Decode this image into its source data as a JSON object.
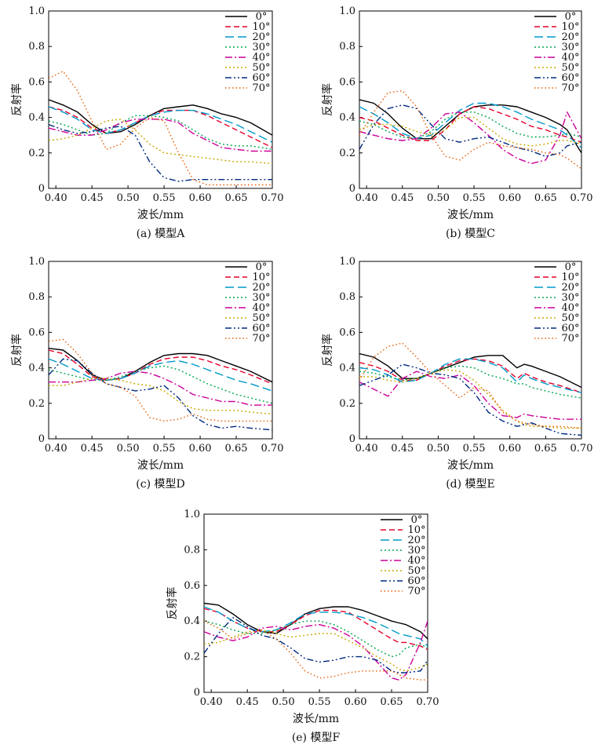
{
  "figure": {
    "y_tick_labels": [
      "0",
      "0.2",
      "0.4",
      "0.6",
      "0.8",
      "1.0"
    ],
    "x_tick_labels": [
      "0.40",
      "0.45",
      "0.50",
      "0.55",
      "0.60",
      "0.65",
      "0.70"
    ]
  },
  "legend_labels": [
    "0°",
    "10°",
    "20°",
    "30°",
    "40°",
    "50°",
    "60°",
    "70°"
  ],
  "series_colors": [
    "#000000",
    "#e4002b",
    "#0099cc",
    "#00a651",
    "#cc0099",
    "#c8a800",
    "#002b80",
    "#e65c00"
  ],
  "chart_data": [
    {
      "type": "line",
      "caption": "(a) 模型A",
      "xlabel": "波长/mm",
      "ylabel": "反射率",
      "xlim": [
        0.39,
        0.7
      ],
      "ylim": [
        0,
        1.0
      ],
      "grid": false,
      "legend": "top-right",
      "x": [
        0.39,
        0.41,
        0.43,
        0.45,
        0.47,
        0.49,
        0.51,
        0.53,
        0.55,
        0.57,
        0.59,
        0.61,
        0.63,
        0.65,
        0.67,
        0.7
      ],
      "series": [
        {
          "name": "0°",
          "values": [
            0.5,
            0.47,
            0.43,
            0.36,
            0.31,
            0.32,
            0.36,
            0.41,
            0.45,
            0.46,
            0.47,
            0.45,
            0.42,
            0.4,
            0.37,
            0.3
          ]
        },
        {
          "name": "10°",
          "values": [
            0.46,
            0.44,
            0.4,
            0.34,
            0.31,
            0.33,
            0.37,
            0.41,
            0.44,
            0.44,
            0.44,
            0.41,
            0.37,
            0.33,
            0.29,
            0.23
          ]
        },
        {
          "name": "20°",
          "values": [
            0.46,
            0.43,
            0.39,
            0.33,
            0.31,
            0.33,
            0.37,
            0.41,
            0.43,
            0.44,
            0.44,
            0.42,
            0.39,
            0.36,
            0.32,
            0.26
          ]
        },
        {
          "name": "30°",
          "values": [
            0.38,
            0.36,
            0.33,
            0.3,
            0.31,
            0.37,
            0.41,
            0.41,
            0.4,
            0.38,
            0.33,
            0.28,
            0.25,
            0.24,
            0.24,
            0.22
          ]
        },
        {
          "name": "40°",
          "values": [
            0.34,
            0.32,
            0.3,
            0.3,
            0.33,
            0.37,
            0.39,
            0.39,
            0.39,
            0.37,
            0.31,
            0.27,
            0.23,
            0.22,
            0.21,
            0.21
          ]
        },
        {
          "name": "50°",
          "values": [
            0.27,
            0.28,
            0.3,
            0.34,
            0.38,
            0.39,
            0.33,
            0.25,
            0.2,
            0.19,
            0.18,
            0.17,
            0.16,
            0.15,
            0.15,
            0.14
          ]
        },
        {
          "name": "60°",
          "values": [
            0.36,
            0.33,
            0.31,
            0.32,
            0.34,
            0.35,
            0.3,
            0.15,
            0.06,
            0.04,
            0.05,
            0.05,
            0.05,
            0.05,
            0.05,
            0.05
          ]
        },
        {
          "name": "70°",
          "values": [
            0.62,
            0.66,
            0.55,
            0.38,
            0.22,
            0.25,
            0.34,
            0.4,
            0.38,
            0.2,
            0.05,
            0.02,
            0.02,
            0.02,
            0.02,
            0.02
          ]
        }
      ]
    },
    {
      "type": "line",
      "caption": "(b) 模型C",
      "xlabel": "波长/mm",
      "ylabel": "反射率",
      "xlim": [
        0.39,
        0.7
      ],
      "ylim": [
        0,
        1.0
      ],
      "grid": false,
      "legend": "top-right",
      "x": [
        0.39,
        0.41,
        0.43,
        0.45,
        0.47,
        0.49,
        0.51,
        0.53,
        0.55,
        0.57,
        0.59,
        0.61,
        0.63,
        0.65,
        0.67,
        0.68,
        0.7
      ],
      "series": [
        {
          "name": "0°",
          "values": [
            0.5,
            0.48,
            0.42,
            0.34,
            0.28,
            0.28,
            0.35,
            0.42,
            0.46,
            0.47,
            0.47,
            0.46,
            0.43,
            0.4,
            0.36,
            0.33,
            0.2
          ]
        },
        {
          "name": "10°",
          "values": [
            0.4,
            0.38,
            0.34,
            0.3,
            0.27,
            0.27,
            0.33,
            0.42,
            0.46,
            0.45,
            0.42,
            0.39,
            0.35,
            0.33,
            0.3,
            0.29,
            0.26
          ]
        },
        {
          "name": "20°",
          "values": [
            0.46,
            0.42,
            0.37,
            0.31,
            0.28,
            0.3,
            0.37,
            0.44,
            0.48,
            0.48,
            0.46,
            0.43,
            0.39,
            0.36,
            0.33,
            0.3,
            0.23
          ]
        },
        {
          "name": "30°",
          "values": [
            0.38,
            0.36,
            0.32,
            0.29,
            0.28,
            0.32,
            0.39,
            0.43,
            0.43,
            0.4,
            0.35,
            0.31,
            0.29,
            0.29,
            0.3,
            0.31,
            0.29
          ]
        },
        {
          "name": "40°",
          "values": [
            0.32,
            0.3,
            0.28,
            0.27,
            0.28,
            0.34,
            0.42,
            0.43,
            0.37,
            0.3,
            0.22,
            0.17,
            0.14,
            0.16,
            0.3,
            0.43,
            0.28
          ]
        },
        {
          "name": "50°",
          "values": [
            0.33,
            0.36,
            0.36,
            0.35,
            0.32,
            0.3,
            0.33,
            0.4,
            0.4,
            0.34,
            0.28,
            0.25,
            0.24,
            0.25,
            0.27,
            0.27,
            0.25
          ]
        },
        {
          "name": "60°",
          "values": [
            0.22,
            0.36,
            0.45,
            0.47,
            0.45,
            0.36,
            0.28,
            0.26,
            0.28,
            0.29,
            0.26,
            0.23,
            0.21,
            0.18,
            0.2,
            0.24,
            0.26
          ]
        },
        {
          "name": "70°",
          "values": [
            0.3,
            0.43,
            0.54,
            0.55,
            0.46,
            0.3,
            0.18,
            0.16,
            0.22,
            0.26,
            0.24,
            0.23,
            0.22,
            0.2,
            0.19,
            0.17,
            0.11
          ]
        }
      ]
    },
    {
      "type": "line",
      "caption": "(c) 模型D",
      "xlabel": "波长/mm",
      "ylabel": "反射率",
      "xlim": [
        0.39,
        0.7
      ],
      "ylim": [
        0,
        1.0
      ],
      "grid": false,
      "legend": "top-right",
      "x": [
        0.39,
        0.41,
        0.43,
        0.45,
        0.47,
        0.49,
        0.51,
        0.53,
        0.55,
        0.57,
        0.59,
        0.61,
        0.63,
        0.65,
        0.67,
        0.7
      ],
      "series": [
        {
          "name": "0°",
          "values": [
            0.51,
            0.5,
            0.44,
            0.36,
            0.33,
            0.34,
            0.38,
            0.43,
            0.47,
            0.48,
            0.48,
            0.47,
            0.44,
            0.41,
            0.38,
            0.32
          ]
        },
        {
          "name": "10°",
          "values": [
            0.5,
            0.48,
            0.42,
            0.35,
            0.33,
            0.34,
            0.37,
            0.42,
            0.45,
            0.46,
            0.46,
            0.44,
            0.41,
            0.39,
            0.36,
            0.31
          ]
        },
        {
          "name": "20°",
          "values": [
            0.45,
            0.42,
            0.38,
            0.34,
            0.33,
            0.34,
            0.37,
            0.41,
            0.43,
            0.44,
            0.42,
            0.39,
            0.36,
            0.33,
            0.31,
            0.27
          ]
        },
        {
          "name": "30°",
          "values": [
            0.39,
            0.37,
            0.35,
            0.33,
            0.33,
            0.35,
            0.38,
            0.4,
            0.41,
            0.39,
            0.35,
            0.31,
            0.28,
            0.25,
            0.23,
            0.2
          ]
        },
        {
          "name": "40°",
          "values": [
            0.32,
            0.32,
            0.32,
            0.33,
            0.34,
            0.37,
            0.38,
            0.37,
            0.34,
            0.3,
            0.25,
            0.23,
            0.21,
            0.21,
            0.19,
            0.19
          ]
        },
        {
          "name": "50°",
          "values": [
            0.3,
            0.3,
            0.32,
            0.34,
            0.34,
            0.33,
            0.31,
            0.3,
            0.27,
            0.21,
            0.17,
            0.16,
            0.16,
            0.16,
            0.15,
            0.14
          ]
        },
        {
          "name": "60°",
          "values": [
            0.36,
            0.45,
            0.44,
            0.37,
            0.31,
            0.29,
            0.27,
            0.28,
            0.3,
            0.23,
            0.13,
            0.08,
            0.06,
            0.07,
            0.06,
            0.05
          ]
        },
        {
          "name": "70°",
          "values": [
            0.55,
            0.56,
            0.48,
            0.37,
            0.31,
            0.29,
            0.24,
            0.12,
            0.1,
            0.11,
            0.14,
            0.11,
            0.1,
            0.1,
            0.1,
            0.1
          ]
        }
      ]
    },
    {
      "type": "line",
      "caption": "(d) 模型E",
      "xlabel": "波长/mm",
      "ylabel": "反射率",
      "xlim": [
        0.39,
        0.7
      ],
      "ylim": [
        0,
        1.0
      ],
      "grid": false,
      "legend": "top-right",
      "x": [
        0.39,
        0.41,
        0.43,
        0.45,
        0.47,
        0.49,
        0.51,
        0.53,
        0.55,
        0.57,
        0.59,
        0.61,
        0.62,
        0.63,
        0.65,
        0.67,
        0.7
      ],
      "series": [
        {
          "name": "0°",
          "values": [
            0.48,
            0.46,
            0.41,
            0.34,
            0.34,
            0.37,
            0.4,
            0.43,
            0.46,
            0.47,
            0.47,
            0.4,
            0.42,
            0.41,
            0.38,
            0.35,
            0.29
          ]
        },
        {
          "name": "10°",
          "values": [
            0.43,
            0.41,
            0.38,
            0.33,
            0.33,
            0.37,
            0.41,
            0.44,
            0.45,
            0.44,
            0.41,
            0.34,
            0.37,
            0.35,
            0.32,
            0.3,
            0.26
          ]
        },
        {
          "name": "20°",
          "values": [
            0.4,
            0.39,
            0.36,
            0.32,
            0.33,
            0.37,
            0.42,
            0.45,
            0.45,
            0.43,
            0.4,
            0.32,
            0.36,
            0.34,
            0.31,
            0.29,
            0.26
          ]
        },
        {
          "name": "30°",
          "values": [
            0.38,
            0.37,
            0.35,
            0.33,
            0.34,
            0.37,
            0.4,
            0.41,
            0.4,
            0.36,
            0.34,
            0.31,
            0.31,
            0.29,
            0.27,
            0.25,
            0.23
          ]
        },
        {
          "name": "40°",
          "values": [
            0.32,
            0.28,
            0.24,
            0.34,
            0.38,
            0.35,
            0.34,
            0.36,
            0.3,
            0.2,
            0.13,
            0.12,
            0.14,
            0.13,
            0.12,
            0.11,
            0.11
          ]
        },
        {
          "name": "50°",
          "values": [
            0.35,
            0.35,
            0.33,
            0.32,
            0.34,
            0.37,
            0.39,
            0.38,
            0.33,
            0.25,
            0.16,
            0.1,
            0.08,
            0.07,
            0.07,
            0.06,
            0.06
          ]
        },
        {
          "name": "60°",
          "values": [
            0.3,
            0.33,
            0.36,
            0.42,
            0.4,
            0.37,
            0.36,
            0.34,
            0.26,
            0.15,
            0.1,
            0.07,
            0.08,
            0.09,
            0.06,
            0.03,
            0.02
          ]
        },
        {
          "name": "70°",
          "values": [
            0.33,
            0.46,
            0.52,
            0.54,
            0.46,
            0.37,
            0.3,
            0.23,
            0.29,
            0.27,
            0.15,
            0.1,
            0.09,
            0.08,
            0.07,
            0.07,
            0.06
          ]
        }
      ]
    },
    {
      "type": "line",
      "caption": "(e) 模型F",
      "xlabel": "波长/mm",
      "ylabel": "反射率",
      "xlim": [
        0.39,
        0.7
      ],
      "ylim": [
        0,
        1.0
      ],
      "grid": false,
      "legend": "top-right",
      "x": [
        0.39,
        0.41,
        0.43,
        0.45,
        0.47,
        0.49,
        0.51,
        0.53,
        0.55,
        0.57,
        0.59,
        0.61,
        0.63,
        0.65,
        0.66,
        0.67,
        0.69,
        0.7
      ],
      "series": [
        {
          "name": "0°",
          "values": [
            0.5,
            0.49,
            0.44,
            0.38,
            0.34,
            0.33,
            0.38,
            0.44,
            0.47,
            0.48,
            0.48,
            0.46,
            0.43,
            0.4,
            0.39,
            0.38,
            0.34,
            0.3
          ]
        },
        {
          "name": "10°",
          "values": [
            0.47,
            0.45,
            0.4,
            0.36,
            0.34,
            0.34,
            0.38,
            0.43,
            0.46,
            0.46,
            0.45,
            0.4,
            0.35,
            0.3,
            0.28,
            0.28,
            0.26,
            0.24
          ]
        },
        {
          "name": "20°",
          "values": [
            0.48,
            0.45,
            0.4,
            0.36,
            0.34,
            0.35,
            0.39,
            0.44,
            0.45,
            0.45,
            0.44,
            0.42,
            0.39,
            0.35,
            0.33,
            0.32,
            0.3,
            0.26
          ]
        },
        {
          "name": "30°",
          "values": [
            0.4,
            0.38,
            0.35,
            0.33,
            0.33,
            0.35,
            0.38,
            0.4,
            0.4,
            0.38,
            0.34,
            0.29,
            0.24,
            0.2,
            0.21,
            0.25,
            0.27,
            0.25
          ]
        },
        {
          "name": "40°",
          "values": [
            0.34,
            0.31,
            0.29,
            0.31,
            0.36,
            0.37,
            0.35,
            0.37,
            0.38,
            0.36,
            0.32,
            0.26,
            0.17,
            0.08,
            0.07,
            0.1,
            0.28,
            0.4
          ]
        },
        {
          "name": "50°",
          "values": [
            0.27,
            0.28,
            0.31,
            0.34,
            0.35,
            0.33,
            0.31,
            0.32,
            0.33,
            0.33,
            0.29,
            0.25,
            0.2,
            0.16,
            0.13,
            0.12,
            0.14,
            0.16
          ]
        },
        {
          "name": "60°",
          "values": [
            0.22,
            0.33,
            0.42,
            0.37,
            0.32,
            0.3,
            0.25,
            0.19,
            0.17,
            0.18,
            0.2,
            0.2,
            0.18,
            0.12,
            0.11,
            0.11,
            0.12,
            0.18
          ]
        },
        {
          "name": "70°",
          "values": [
            0.4,
            0.36,
            0.3,
            0.33,
            0.35,
            0.3,
            0.22,
            0.12,
            0.08,
            0.09,
            0.11,
            0.12,
            0.12,
            0.12,
            0.1,
            0.08,
            0.07,
            0.07
          ]
        }
      ]
    }
  ]
}
